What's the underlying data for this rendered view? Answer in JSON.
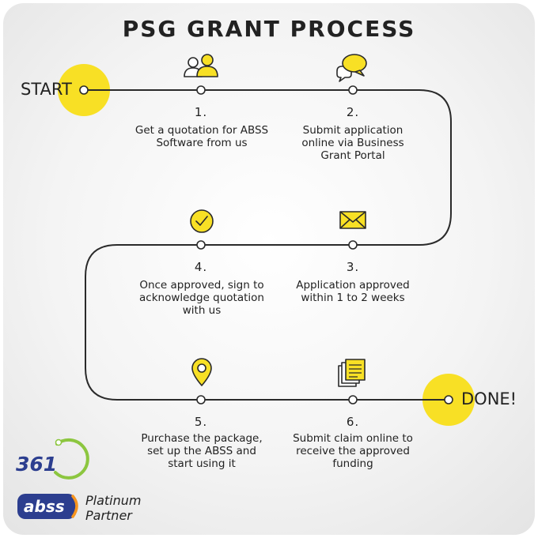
{
  "title": "PSG GRANT PROCESS",
  "start_label": "START",
  "done_label": "DONE!",
  "steps": [
    {
      "number": "1.",
      "text": "Get a quotation for ABSS Software from us",
      "icon": "people-icon"
    },
    {
      "number": "2.",
      "text": "Submit application online via Business Grant Portal",
      "icon": "chat-bubbles-icon"
    },
    {
      "number": "3.",
      "text": "Application approved within 1 to 2 weeks",
      "icon": "envelope-icon"
    },
    {
      "number": "4.",
      "text": "Once approved, sign to acknowledge quotation with us",
      "icon": "checkmark-icon"
    },
    {
      "number": "5.",
      "text": "Purchase the package, set up the ABSS and start using it",
      "icon": "location-pin-icon"
    },
    {
      "number": "6.",
      "text": "Submit claim online to receive the approved funding",
      "icon": "documents-icon"
    }
  ],
  "logos": {
    "logo_361": "361",
    "logo_abss": "abss",
    "partner_line1": "Platinum",
    "partner_line2": "Partner"
  },
  "colors": {
    "accent": "#f8e025",
    "line": "#2a2a2a",
    "text": "#222222",
    "logo_blue": "#2c3e8f",
    "logo_green": "#8cc63f",
    "abss_orange": "#f7941d"
  }
}
